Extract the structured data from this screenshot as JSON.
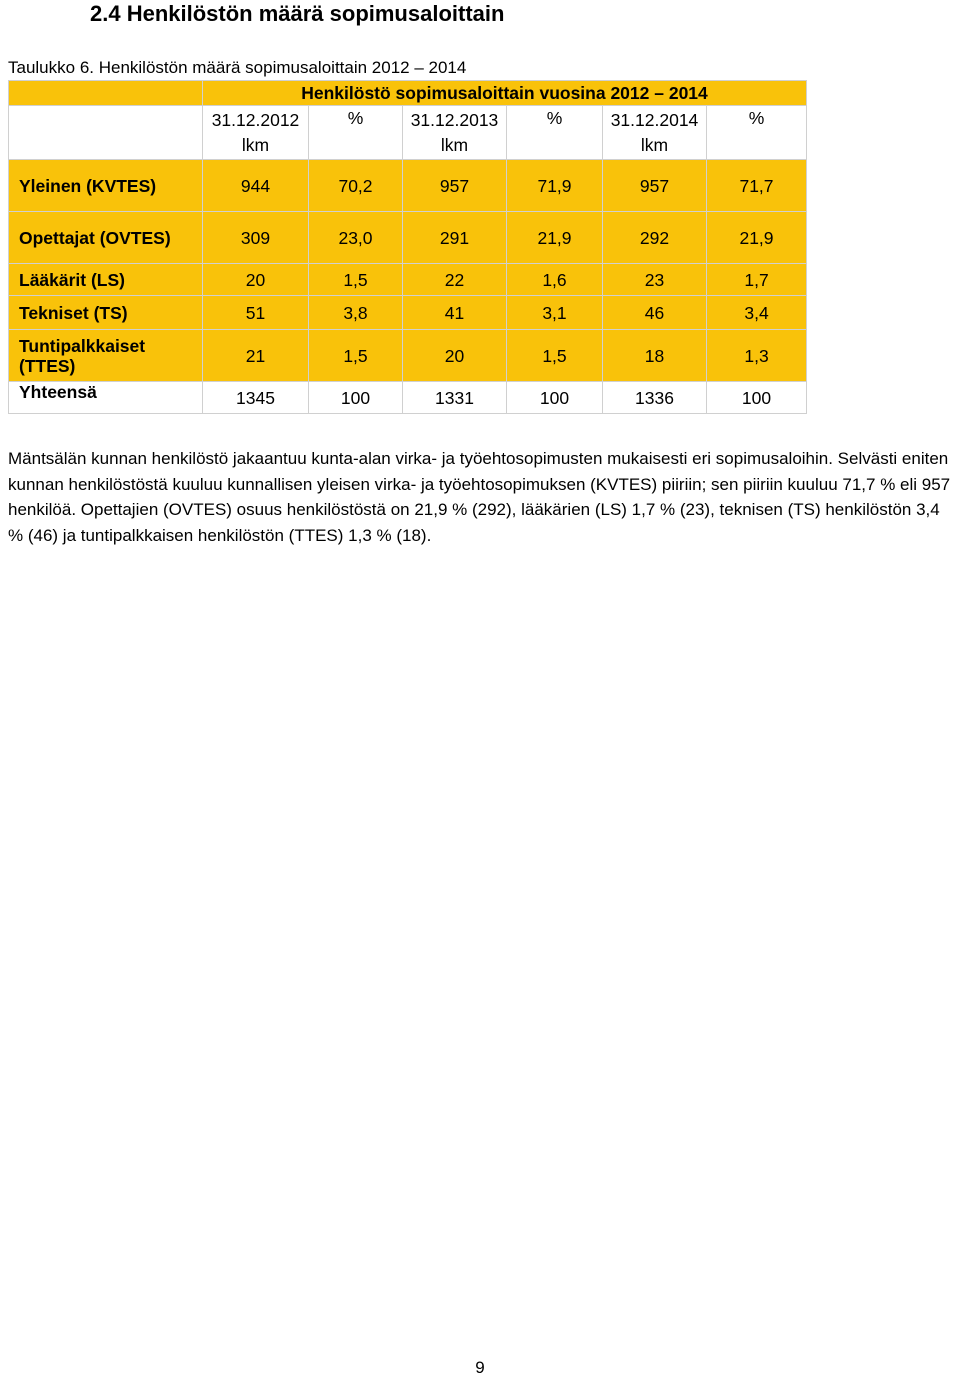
{
  "heading": "2.4 Henkilöstön määrä sopimusaloittain",
  "caption": "Taulukko 6. Henkilöstön määrä sopimusaloittain 2012 – 2014",
  "table": {
    "title": "Henkilöstö sopimusaloittain vuosina 2012 – 2014",
    "headers": [
      {
        "date": "31.12.2012",
        "unit": "lkm"
      },
      {
        "date": "%",
        "unit": ""
      },
      {
        "date": "31.12.2013",
        "unit": "lkm"
      },
      {
        "date": "%",
        "unit": ""
      },
      {
        "date": "31.12.2014",
        "unit": "lkm"
      },
      {
        "date": "%",
        "unit": ""
      }
    ],
    "rows": [
      {
        "label": "Yleinen (KVTES)",
        "values": [
          "944",
          "70,2",
          "957",
          "71,9",
          "957",
          "71,7"
        ]
      },
      {
        "label": "Opettajat (OVTES)",
        "values": [
          "309",
          "23,0",
          "291",
          "21,9",
          "292",
          "21,9"
        ]
      },
      {
        "label": "Lääkärit (LS)",
        "values": [
          "20",
          "1,5",
          "22",
          "1,6",
          "23",
          "1,7"
        ]
      },
      {
        "label": "Tekniset (TS)",
        "values": [
          "51",
          "3,8",
          "41",
          "3,1",
          "46",
          "3,4"
        ]
      },
      {
        "label": "Tuntipalkkaiset (TTES)",
        "values": [
          "21",
          "1,5",
          "20",
          "1,5",
          "18",
          "1,3"
        ]
      },
      {
        "label": "Yhteensä",
        "values": [
          "1345",
          "100",
          "1331",
          "100",
          "1336",
          "100"
        ]
      }
    ]
  },
  "paragraph": "Mäntsälän kunnan henkilöstö jakaantuu kunta-alan virka- ja työehtosopimusten mukaisesti eri sopimusaloihin. Selvästi eniten kunnan henkilöstöstä kuuluu kunnallisen yleisen virka- ja työehtosopimuksen (KVTES) piiriin; sen piiriin kuuluu 71,7 % eli 957 henkilöä. Opettajien (OVTES) osuus henkilöstöstä on 21,9 % (292), lääkärien (LS) 1,7 % (23), teknisen (TS) henkilöstön 3,4 % (46) ja tuntipalkkaisen henkilöstön (TTES) 1,3 % (18).",
  "page_number": "9",
  "colors": {
    "table_highlight": "#f9c20a",
    "table_border": "#d0d0d0"
  }
}
